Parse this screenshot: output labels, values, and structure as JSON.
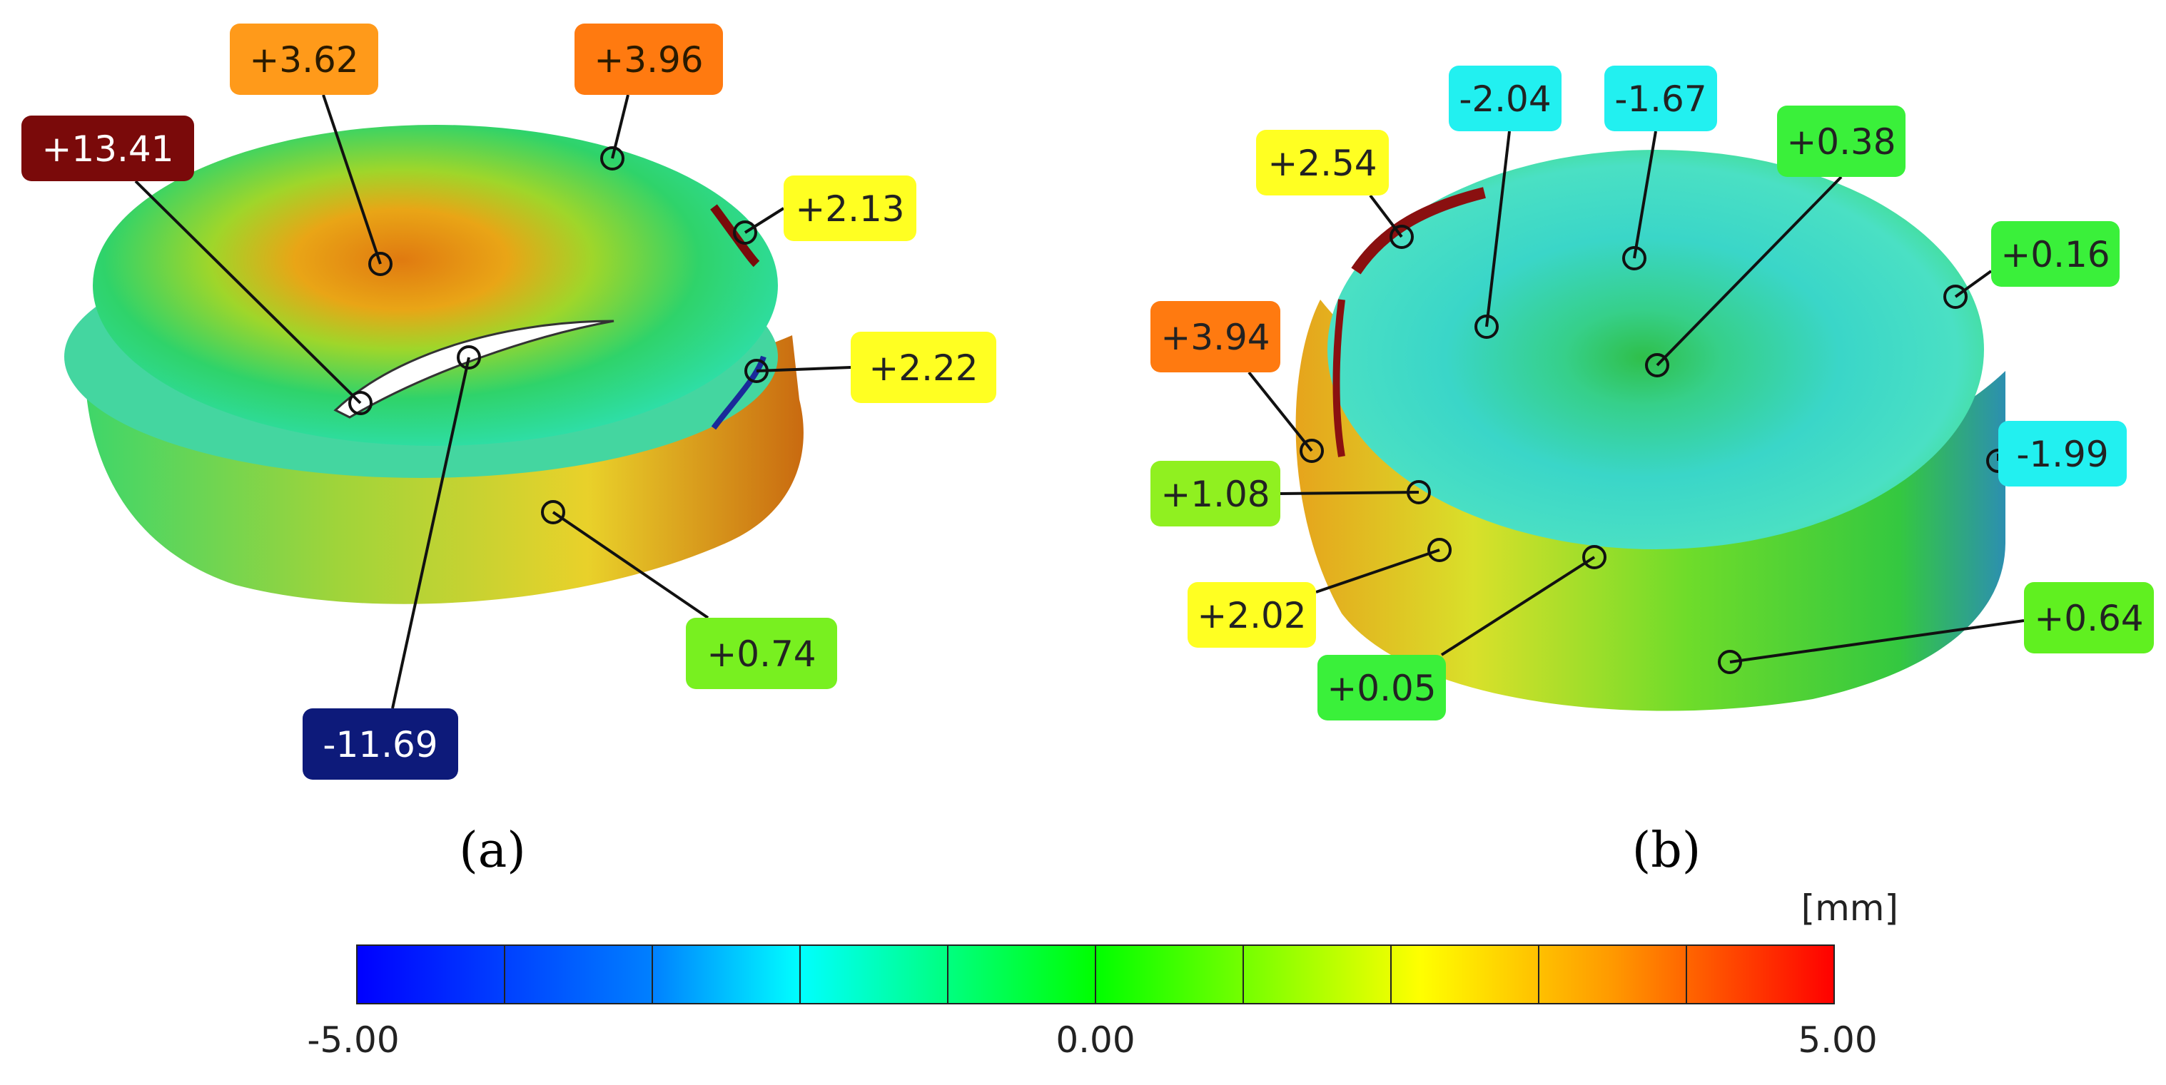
{
  "panels": [
    {
      "label": "(a)",
      "callouts": [
        {
          "text": "+3.62",
          "color": "#ff9a1a",
          "text_color": "#2a1a00"
        },
        {
          "text": "+3.96",
          "color": "#ff7a10",
          "text_color": "#2a1a00"
        },
        {
          "text": "+13.41",
          "color": "#7a0a0a",
          "text_color": "#ffffff"
        },
        {
          "text": "+2.13",
          "color": "#ffff22",
          "text_color": "#222222"
        },
        {
          "text": "+2.22",
          "color": "#ffff22",
          "text_color": "#222222"
        },
        {
          "text": "+0.74",
          "color": "#78f020",
          "text_color": "#222222"
        },
        {
          "text": "-11.69",
          "color": "#0d1a7a",
          "text_color": "#ffffff"
        }
      ]
    },
    {
      "label": "(b)",
      "callouts": [
        {
          "text": "-2.04",
          "color": "#22f0f0",
          "text_color": "#222222"
        },
        {
          "text": "-1.67",
          "color": "#22f0f0",
          "text_color": "#222222"
        },
        {
          "text": "+0.38",
          "color": "#3af03a",
          "text_color": "#222222"
        },
        {
          "text": "+2.54",
          "color": "#ffff22",
          "text_color": "#222222"
        },
        {
          "text": "+0.16",
          "color": "#3af03a",
          "text_color": "#222222"
        },
        {
          "text": "+3.94",
          "color": "#ff7a10",
          "text_color": "#222222"
        },
        {
          "text": "-1.99",
          "color": "#22f0f0",
          "text_color": "#222222"
        },
        {
          "text": "+1.08",
          "color": "#90f020",
          "text_color": "#222222"
        },
        {
          "text": "+2.02",
          "color": "#ffff22",
          "text_color": "#222222"
        },
        {
          "text": "+0.64",
          "color": "#60f020",
          "text_color": "#222222"
        },
        {
          "text": "+0.05",
          "color": "#3af03a",
          "text_color": "#222222"
        }
      ]
    }
  ],
  "colorbar": {
    "unit": "[mm]",
    "min_label": "-5.00",
    "mid_label": "0.00",
    "max_label": "5.00",
    "min": -5.0,
    "max": 5.0,
    "colors": [
      "#0000ff",
      "#0070ff",
      "#00ffff",
      "#00ff00",
      "#ffff00",
      "#ff8000",
      "#ff0000"
    ]
  }
}
